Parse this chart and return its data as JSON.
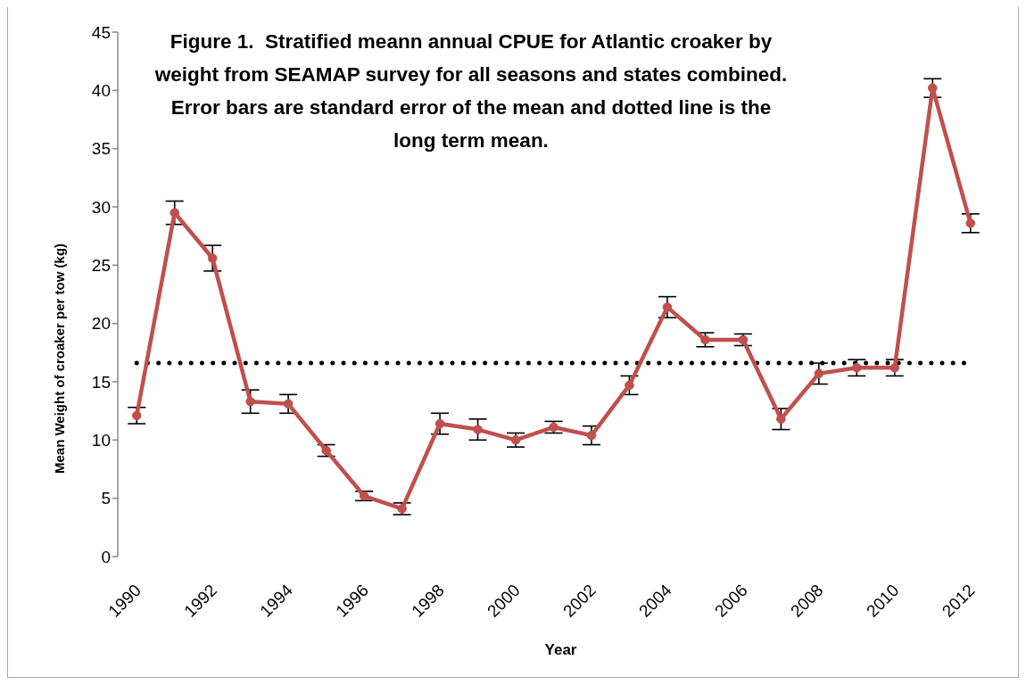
{
  "chart_data": {
    "type": "line",
    "title": "Figure 1.  Stratified meann annual CPUE for Atlantic croaker by weight from SEAMAP survey for all seasons and states combined. Error bars are standard error of the mean and dotted line is the long term mean.",
    "xlabel": "Year",
    "ylabel": "Mean Weight of croaker per tow (kg)",
    "categories": [
      "1990",
      null,
      "1992",
      null,
      "1994",
      null,
      "1996",
      null,
      "1998",
      null,
      "2000",
      null,
      "2002",
      null,
      "2004",
      null,
      "2006",
      null,
      "2008",
      null,
      "2010",
      null,
      "2012"
    ],
    "series": [
      {
        "color": "#c0504d",
        "values": [
          12.1,
          29.5,
          25.6,
          13.3,
          13.1,
          9.1,
          5.2,
          4.1,
          11.4,
          10.9,
          10.0,
          11.1,
          10.4,
          14.7,
          21.4,
          18.6,
          18.6,
          11.8,
          15.7,
          16.2,
          16.2,
          40.2,
          28.6
        ],
        "errors": [
          0.7,
          1.0,
          1.1,
          1.0,
          0.8,
          0.5,
          0.4,
          0.5,
          0.9,
          0.9,
          0.6,
          0.5,
          0.8,
          0.8,
          0.9,
          0.6,
          0.5,
          0.9,
          0.9,
          0.7,
          0.7,
          0.8,
          0.8
        ]
      }
    ],
    "ylim": [
      0,
      45
    ],
    "yticks": [
      0,
      5,
      10,
      15,
      20,
      25,
      30,
      35,
      40,
      45
    ],
    "ref_lines": [
      {
        "axis": "y",
        "value": 16.6,
        "color": "#000000",
        "line_style": "dotted"
      }
    ],
    "marker": "circle",
    "line_style": "solid"
  }
}
